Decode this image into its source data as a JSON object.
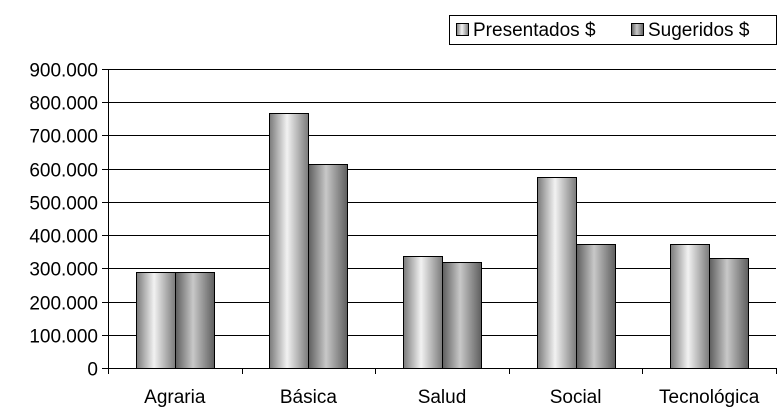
{
  "chart_data": {
    "type": "bar",
    "categories": [
      "Agraria",
      "Básica",
      "Salud",
      "Social",
      "Tecnológica"
    ],
    "series": [
      {
        "name": "Presentados $",
        "values": [
          290000,
          768000,
          336000,
          575000,
          372000
        ]
      },
      {
        "name": "Sugeridos $",
        "values": [
          290000,
          615000,
          320000,
          372000,
          330000
        ]
      }
    ],
    "y_ticks": [
      "0",
      "100.000",
      "200.000",
      "300.000",
      "400.000",
      "500.000",
      "600.000",
      "700.000",
      "800.000",
      "900.000"
    ],
    "ylim": [
      0,
      900000
    ],
    "grid": true,
    "legend_position": "top-right"
  },
  "colors": {
    "presentados_light": "#f2f2f2",
    "presentados_dark": "#7a7a7a",
    "sugeridos_light": "#c8c8c8",
    "sugeridos_dark": "#5e5e5e"
  }
}
